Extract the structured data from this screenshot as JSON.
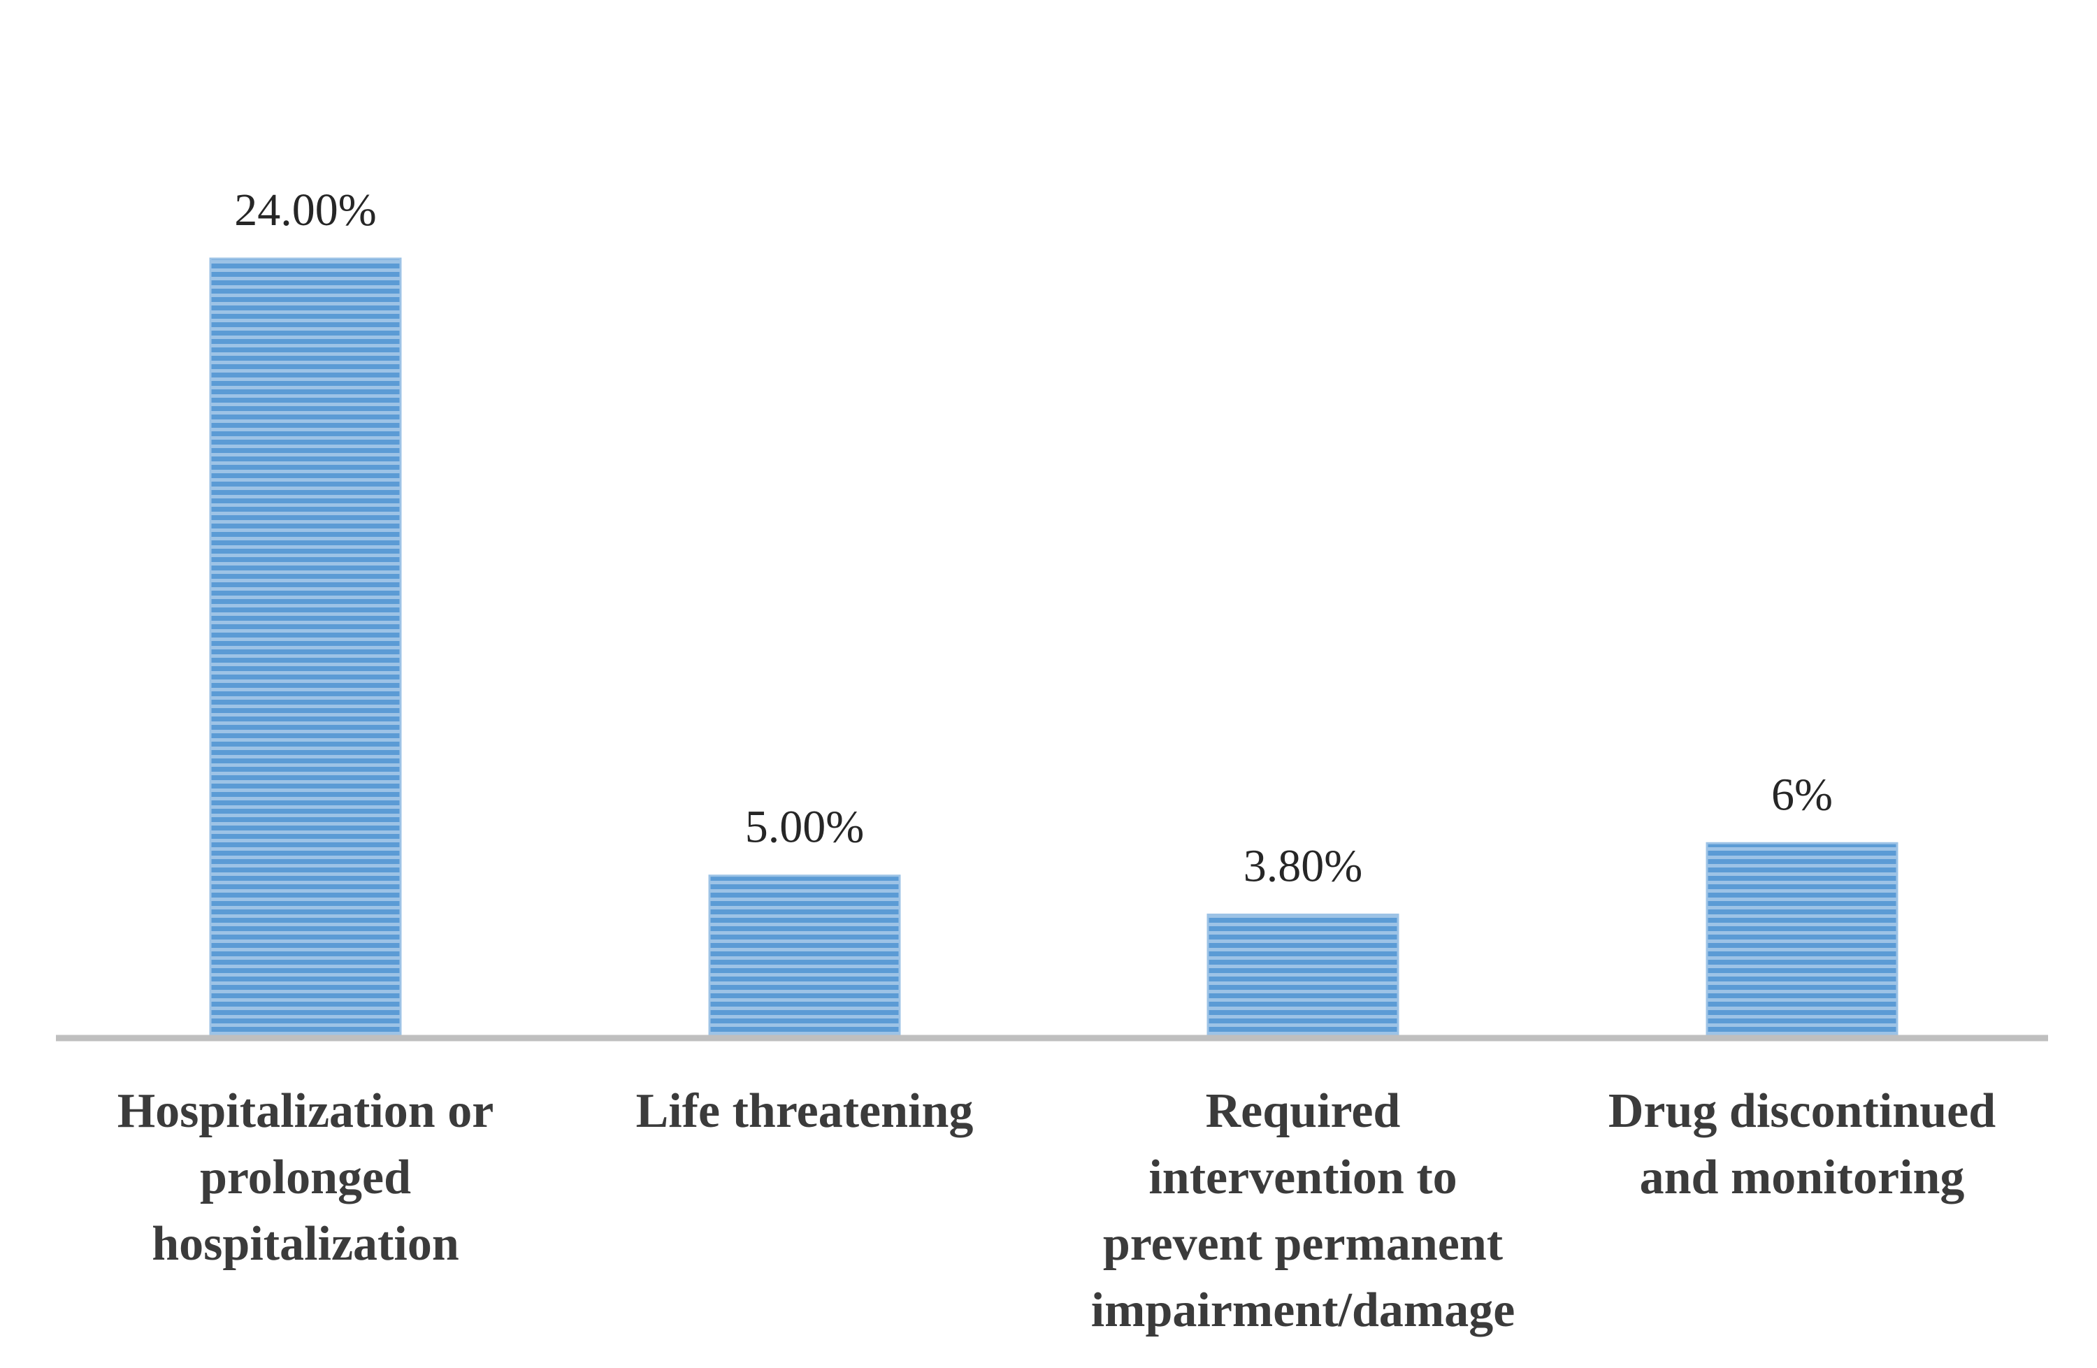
{
  "chart_data": {
    "type": "bar",
    "categories": [
      [
        "Hospitalization or",
        "prolonged",
        "hospitalization"
      ],
      [
        "Life threatening"
      ],
      [
        "Required",
        "intervention to",
        "prevent permanent",
        "impairment/damage"
      ],
      [
        "Drug discontinued",
        "and monitoring"
      ]
    ],
    "values": [
      24.0,
      5.0,
      3.8,
      6.0
    ],
    "data_labels": [
      "24.00%",
      "5.00%",
      "3.80%",
      "6%"
    ],
    "title": "",
    "xlabel": "",
    "ylabel": "",
    "ylim": [
      0,
      24
    ],
    "grid": false,
    "legend": "none",
    "bar_color": "#5b9bd5",
    "bar_stripe_color": "#9dc3e6",
    "axis_color": "#bfbfbf"
  }
}
